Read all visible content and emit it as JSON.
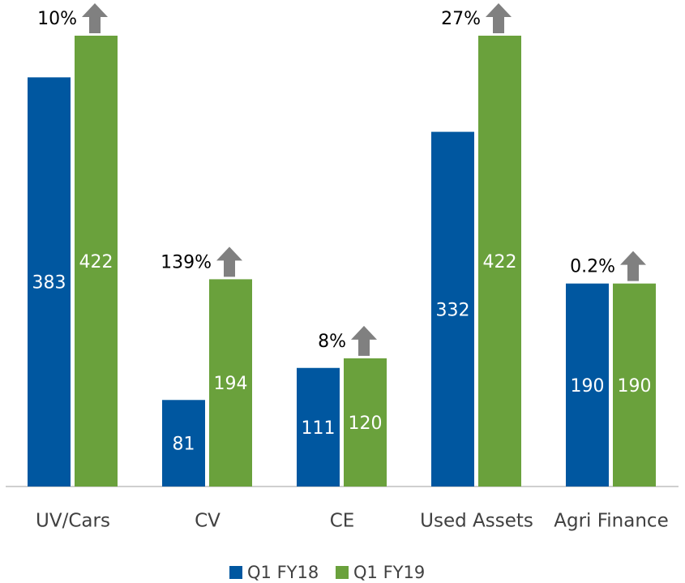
{
  "chart_data": {
    "type": "bar",
    "categories": [
      "UV/Cars",
      "CV",
      "CE",
      "Used Assets",
      "Agri Finance"
    ],
    "series": [
      {
        "name": "Q1 FY18",
        "color": "#0057a0",
        "values": [
          383,
          81,
          111,
          332,
          190
        ]
      },
      {
        "name": "Q1 FY19",
        "color": "#6aa13c",
        "values": [
          422,
          194,
          120,
          422,
          190
        ]
      }
    ],
    "annotations": [
      {
        "value": 10,
        "label": "10%"
      },
      {
        "value": 139,
        "label": "139%"
      },
      {
        "value": 8,
        "label": "8%"
      },
      {
        "value": 27,
        "label": "27%"
      },
      {
        "value": 0.2,
        "label": "0.2%"
      }
    ],
    "annotation_color": "#808080",
    "legend": "bottom"
  }
}
